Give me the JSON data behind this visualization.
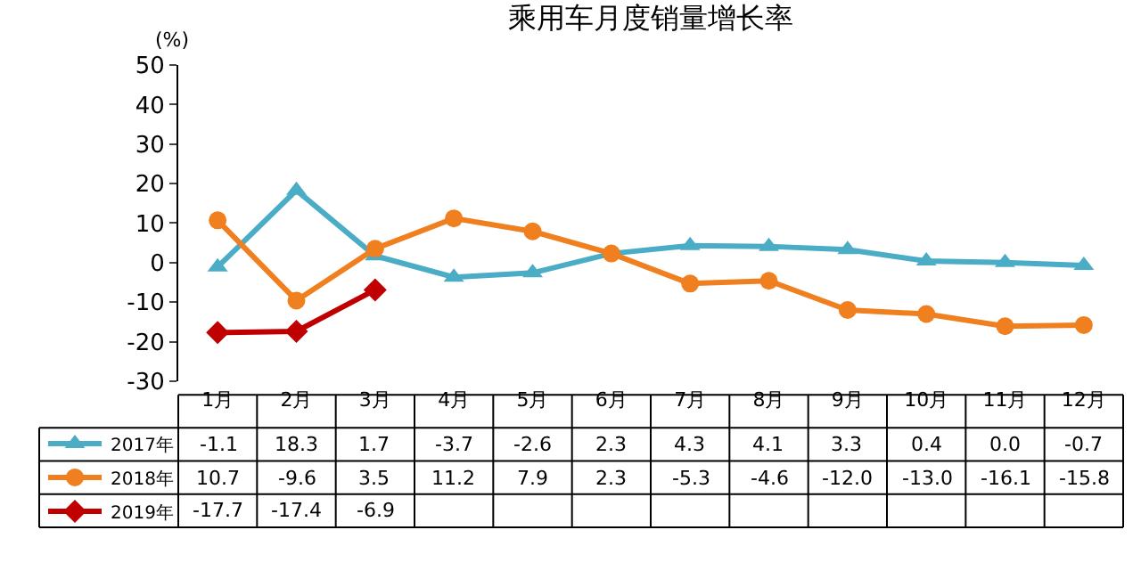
{
  "chart_data": {
    "type": "line",
    "title": "乘用车月度销量增长率",
    "ylabel": "(%)",
    "categories": [
      "1月",
      "2月",
      "3月",
      "4月",
      "5月",
      "6月",
      "7月",
      "8月",
      "9月",
      "10月",
      "11月",
      "12月"
    ],
    "ylim": [
      -30,
      50
    ],
    "yticks": [
      -30,
      -20,
      -10,
      0,
      10,
      20,
      30,
      40,
      50
    ],
    "legend": "bottom left",
    "line_style": "solid",
    "series": [
      {
        "name": "2017年",
        "color": "#4bacc6",
        "marker": "triangle",
        "values": [
          -1.1,
          18.3,
          1.7,
          -3.7,
          -2.6,
          2.3,
          4.3,
          4.1,
          3.3,
          0.4,
          0.0,
          -0.7
        ],
        "value_labels": [
          "-1.1",
          "18.3",
          "1.7",
          "-3.7",
          "-2.6",
          "2.3",
          "4.3",
          "4.1",
          "3.3",
          "0.4",
          "0.0",
          "-0.7"
        ]
      },
      {
        "name": "2018年",
        "color": "#f07f1f",
        "marker": "circle",
        "values": [
          10.7,
          -9.6,
          3.5,
          11.2,
          7.9,
          2.3,
          -5.3,
          -4.6,
          -12.0,
          -13.0,
          -16.1,
          -15.8
        ],
        "value_labels": [
          "10.7",
          "-9.6",
          "3.5",
          "11.2",
          "7.9",
          "2.3",
          "-5.3",
          "-4.6",
          "-12.0",
          "-13.0",
          "-16.1",
          "-15.8"
        ]
      },
      {
        "name": "2019年",
        "color": "#c00000",
        "marker": "diamond",
        "values": [
          -17.7,
          -17.4,
          -6.9,
          null,
          null,
          null,
          null,
          null,
          null,
          null,
          null,
          null
        ],
        "value_labels": [
          "-17.7",
          "-17.4",
          "-6.9",
          null,
          null,
          null,
          null,
          null,
          null,
          null,
          null,
          null
        ]
      }
    ]
  }
}
